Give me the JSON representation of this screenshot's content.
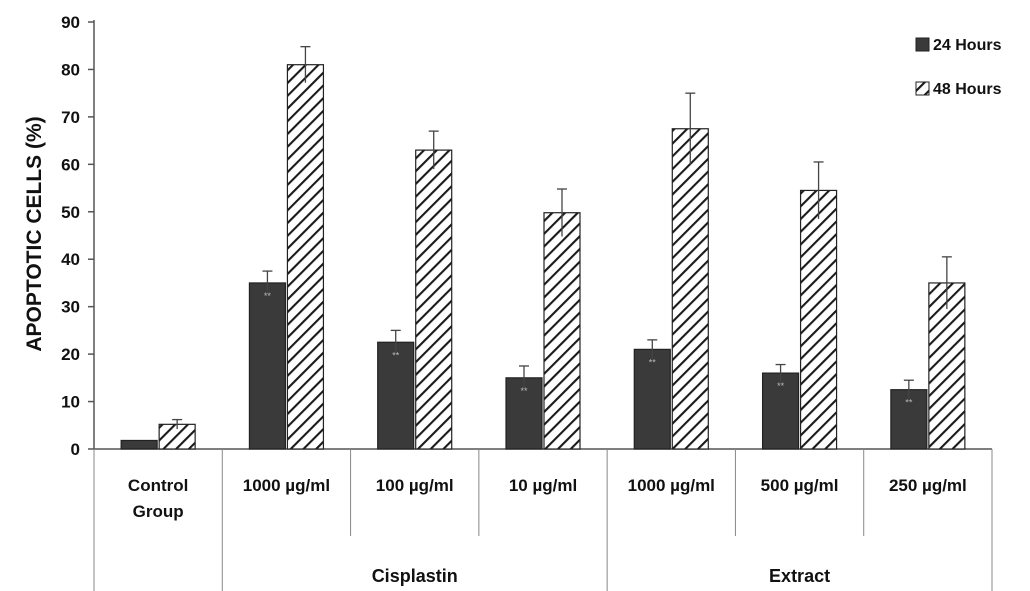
{
  "chart_data": {
    "type": "bar",
    "ylabel": "APOPTOTIC CELLS (%)",
    "xlabel": "",
    "ylim": [
      0,
      90
    ],
    "yticks": [
      0,
      10,
      20,
      30,
      40,
      50,
      60,
      70,
      80,
      90
    ],
    "grid": false,
    "legend_position": "top-right",
    "categories": [
      [
        "Control",
        "Group"
      ],
      [
        "1000 µg/ml"
      ],
      [
        "100 µg/ml"
      ],
      [
        "10 µg/ml"
      ],
      [
        "1000 µg/ml"
      ],
      [
        "500 µg/ml"
      ],
      [
        "250 µg/ml"
      ]
    ],
    "groups": [
      {
        "label": "Cisplastin",
        "categories": [
          1,
          2,
          3
        ]
      },
      {
        "label": "Extract",
        "categories": [
          4,
          5,
          6
        ]
      }
    ],
    "series": [
      {
        "name": "24 Hours",
        "fill": "solid",
        "color": "#3a3a3a",
        "values": [
          1.8,
          35,
          22.5,
          15,
          21,
          16,
          12.5
        ],
        "errors": [
          0,
          2.5,
          2.5,
          2.5,
          2,
          1.8,
          2
        ]
      },
      {
        "name": "48 Hours",
        "fill": "hatched",
        "color": "#222222",
        "values": [
          5.2,
          81,
          63,
          49.8,
          67.5,
          54.5,
          35
        ],
        "errors": [
          1,
          3.8,
          4,
          5,
          7.5,
          6,
          5.5
        ]
      }
    ],
    "annotations": [
      "**",
      "**",
      "**",
      "**",
      "**",
      "**",
      "**"
    ]
  }
}
